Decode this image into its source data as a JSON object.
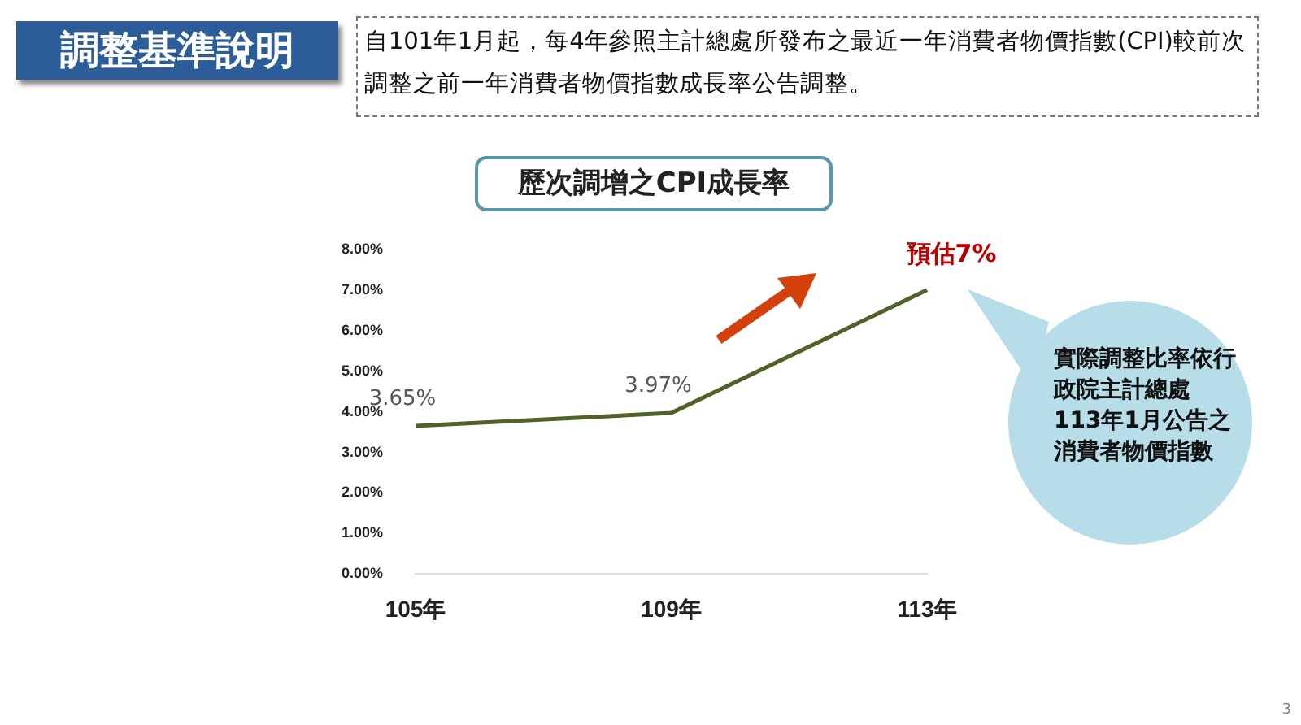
{
  "chart_data": {
    "type": "line",
    "title": "歷次調增之CPI成長率",
    "categories": [
      "105年",
      "109年",
      "113年"
    ],
    "series": [
      {
        "color": "#4f6228",
        "values": [
          3.65,
          3.97,
          7
        ],
        "value_labels": [
          "3.65%",
          "3.97%",
          "預估7%"
        ]
      }
    ],
    "ylim": [
      0,
      8
    ],
    "yticks": [
      {
        "value": 0,
        "label": "0.00%"
      },
      {
        "value": 1,
        "label": "1.00%"
      },
      {
        "value": 2,
        "label": "2.00%"
      },
      {
        "value": 3,
        "label": "3.00%"
      },
      {
        "value": 4,
        "label": "4.00%"
      },
      {
        "value": 5,
        "label": "5.00%"
      },
      {
        "value": 6,
        "label": "6.00%"
      },
      {
        "value": 7,
        "label": "7.00%"
      },
      {
        "value": 8,
        "label": "8.00%"
      }
    ],
    "grid": false,
    "legend": false,
    "marker": "none",
    "line_style": "solid",
    "annotations": [
      "調整基準說明",
      "自101年1月起，每4年參照主計總處所發布之最近一年消費者物價指數(CPI)較前次調整之前一年消費者物價指數成長率公告調整。",
      "實際調整比率依行政院主計總處113年1月公告之消費者物價指數",
      "3"
    ]
  }
}
